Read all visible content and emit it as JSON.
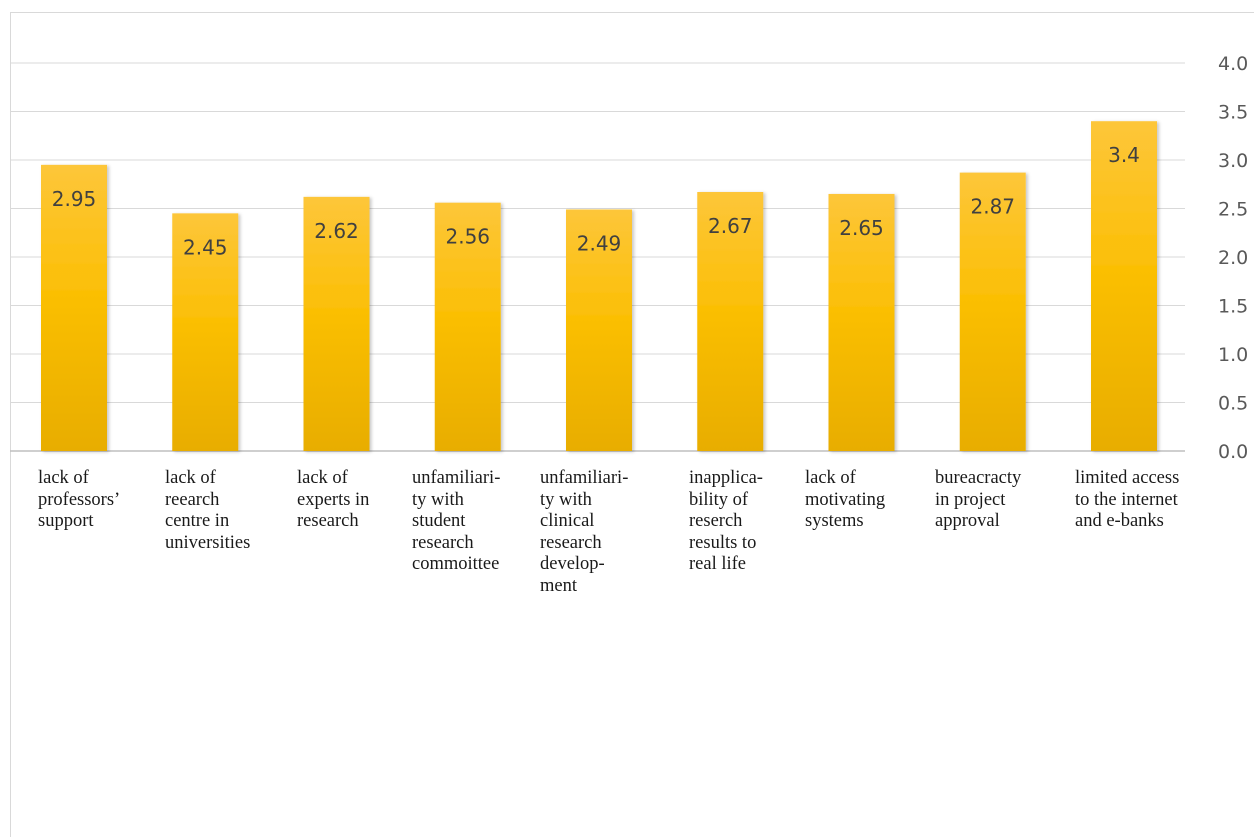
{
  "chart_data": {
    "type": "bar",
    "title": "",
    "xlabel": "",
    "ylabel": "",
    "ylim": [
      0,
      4.0
    ],
    "y_ticks": [
      "0.0",
      "0.5",
      "1.0",
      "1.5",
      "2.0",
      "2.5",
      "3.0",
      "3.5",
      "4.0"
    ],
    "y_axis_side": "right",
    "grid": true,
    "legend": "none",
    "colors": {
      "bar_top": "#fdc63a",
      "bar_mid": "#fbbf05",
      "bar_bottom": "#e8ad00",
      "grid": "#d9d9d9",
      "tick_text": "#595959",
      "label_text": "#404040"
    },
    "categories": [
      [
        "lack of",
        "professors’",
        "support"
      ],
      [
        "lack of",
        "reearch",
        "centre in",
        "universities"
      ],
      [
        "lack of",
        "experts in",
        "research"
      ],
      [
        "unfamiliari-",
        "ty with",
        "student",
        "research",
        "commoittee"
      ],
      [
        "unfamiliari-",
        "ty with",
        "clinical",
        "research",
        "develop-",
        "ment"
      ],
      [
        "inapplica-",
        "bility of",
        "reserch",
        "results to",
        "real life"
      ],
      [
        "lack of",
        "motivating",
        "systems"
      ],
      [
        "bureacracty",
        "in project",
        "approval"
      ],
      [
        "limited access",
        "to the internet",
        "and e-banks"
      ]
    ],
    "values": [
      2.95,
      2.45,
      2.62,
      2.56,
      2.49,
      2.67,
      2.65,
      2.87,
      3.4
    ],
    "data_labels": [
      "2.95",
      "2.45",
      "2.62",
      "2.56",
      "2.49",
      "2.67",
      "2.65",
      "2.87",
      "3.4"
    ]
  }
}
